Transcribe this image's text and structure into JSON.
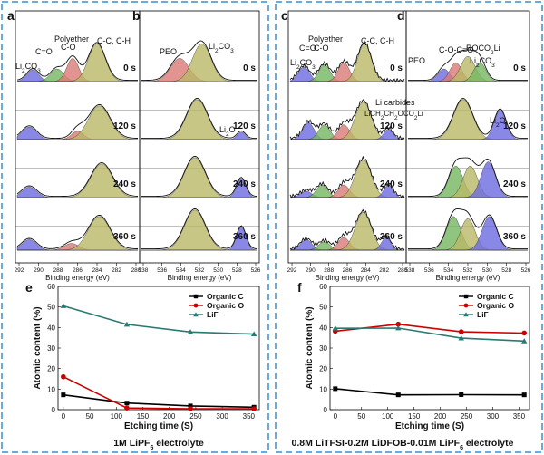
{
  "chart_data": {
    "type": "figure",
    "panels_xps": [
      {
        "id": "a",
        "xticks": [
          "292",
          "290",
          "288",
          "286",
          "284",
          "282",
          "280"
        ],
        "xlabel": "Binding energy (eV)",
        "annotations": [
          "Li2CO3",
          "C=O",
          "C-O",
          "Polyether",
          "C-C, C-H"
        ],
        "times": [
          "0 s",
          "120 s",
          "240 s",
          "360 s"
        ]
      },
      {
        "id": "b",
        "xticks": [
          "538",
          "536",
          "534",
          "532",
          "530",
          "528",
          "526"
        ],
        "xlabel": "Binding energy (eV)",
        "annotations": [
          "PEO",
          "Li2CO3",
          "Li2O"
        ],
        "times": [
          "0 s",
          "120 s",
          "240 s",
          "360 s"
        ]
      },
      {
        "id": "c",
        "xticks": [
          "292",
          "290",
          "288",
          "286",
          "284",
          "282",
          "280"
        ],
        "xlabel": "Binding energy (eV)",
        "annotations": [
          "Li2CO3",
          "C=O",
          "C-O",
          "Polyether",
          "C-C, C-H",
          "Li carbides",
          "LiCH2CH2OCO2Li"
        ],
        "times": [
          "0 s",
          "120 s",
          "240 s",
          "360 s"
        ]
      },
      {
        "id": "d",
        "xticks": [
          "538",
          "536",
          "534",
          "532",
          "530",
          "528",
          "526"
        ],
        "xlabel": "Binding energy (eV)",
        "annotations": [
          "PEO",
          "C-O-C=O",
          "ROCO2Li",
          "Li2CO3",
          "Li2O"
        ],
        "times": [
          "0 s",
          "120 s",
          "240 s",
          "360 s"
        ]
      }
    ],
    "panels_line": [
      {
        "id": "e",
        "type": "line",
        "xlabel": "Etching time (S)",
        "ylabel": "Atomic content (%)",
        "xlim": [
          -10,
          370
        ],
        "ylim": [
          0,
          60
        ],
        "xticks": [
          0,
          50,
          100,
          150,
          200,
          250,
          300,
          350
        ],
        "yticks": [
          0,
          10,
          20,
          30,
          40,
          50,
          60
        ],
        "x": [
          0,
          120,
          240,
          360
        ],
        "series": [
          {
            "name": "Organic C",
            "color": "#000000",
            "marker": "square",
            "values": [
              7.2,
              3.2,
              1.8,
              1.2
            ]
          },
          {
            "name": "Organic O",
            "color": "#cc0000",
            "marker": "circle",
            "values": [
              16,
              0.8,
              0.4,
              0.4
            ]
          },
          {
            "name": "LiF",
            "color": "#2a7a72",
            "marker": "triangle",
            "values": [
              50.5,
              41.5,
              37.8,
              36.8
            ]
          }
        ],
        "caption_pre": "1M LiPF",
        "caption_sub": "6",
        "caption_post": " electrolyte"
      },
      {
        "id": "f",
        "type": "line",
        "xlabel": "Etching time (S)",
        "ylabel": "Atomic content (%)",
        "xlim": [
          -10,
          370
        ],
        "ylim": [
          0,
          60
        ],
        "xticks": [
          0,
          50,
          100,
          150,
          200,
          250,
          300,
          350
        ],
        "yticks": [
          0,
          10,
          20,
          30,
          40,
          50,
          60
        ],
        "x": [
          0,
          120,
          240,
          360
        ],
        "series": [
          {
            "name": "Organic C",
            "color": "#000000",
            "marker": "square",
            "values": [
              10.2,
              7.2,
              7.3,
              7.2
            ]
          },
          {
            "name": "Organic O",
            "color": "#cc0000",
            "marker": "circle",
            "values": [
              38.2,
              41.6,
              37.9,
              37.3
            ]
          },
          {
            "name": "LiF",
            "color": "#2a7a72",
            "marker": "triangle",
            "values": [
              39.6,
              39.7,
              34.8,
              33.4
            ]
          }
        ],
        "caption_pre": "0.8M LiTFSI-0.2M  LiDFOB-0.01M  LiPF",
        "caption_sub": "6",
        "caption_post": " electrolyte"
      }
    ]
  }
}
